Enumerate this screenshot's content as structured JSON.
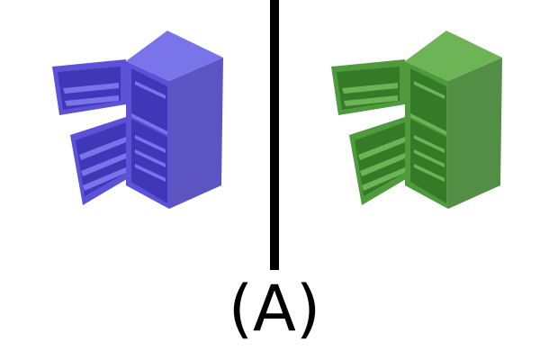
{
  "caption": "(A)",
  "panels": [
    {
      "id": "left",
      "subject": "open-refrigerator",
      "color": "#5b52d8",
      "color_dark": "#3f36b8",
      "color_light": "#7a74ea"
    },
    {
      "id": "right",
      "subject": "open-refrigerator",
      "color": "#4f9a3c",
      "color_dark": "#357a26",
      "color_light": "#6db457"
    }
  ],
  "divider_color": "#000000"
}
